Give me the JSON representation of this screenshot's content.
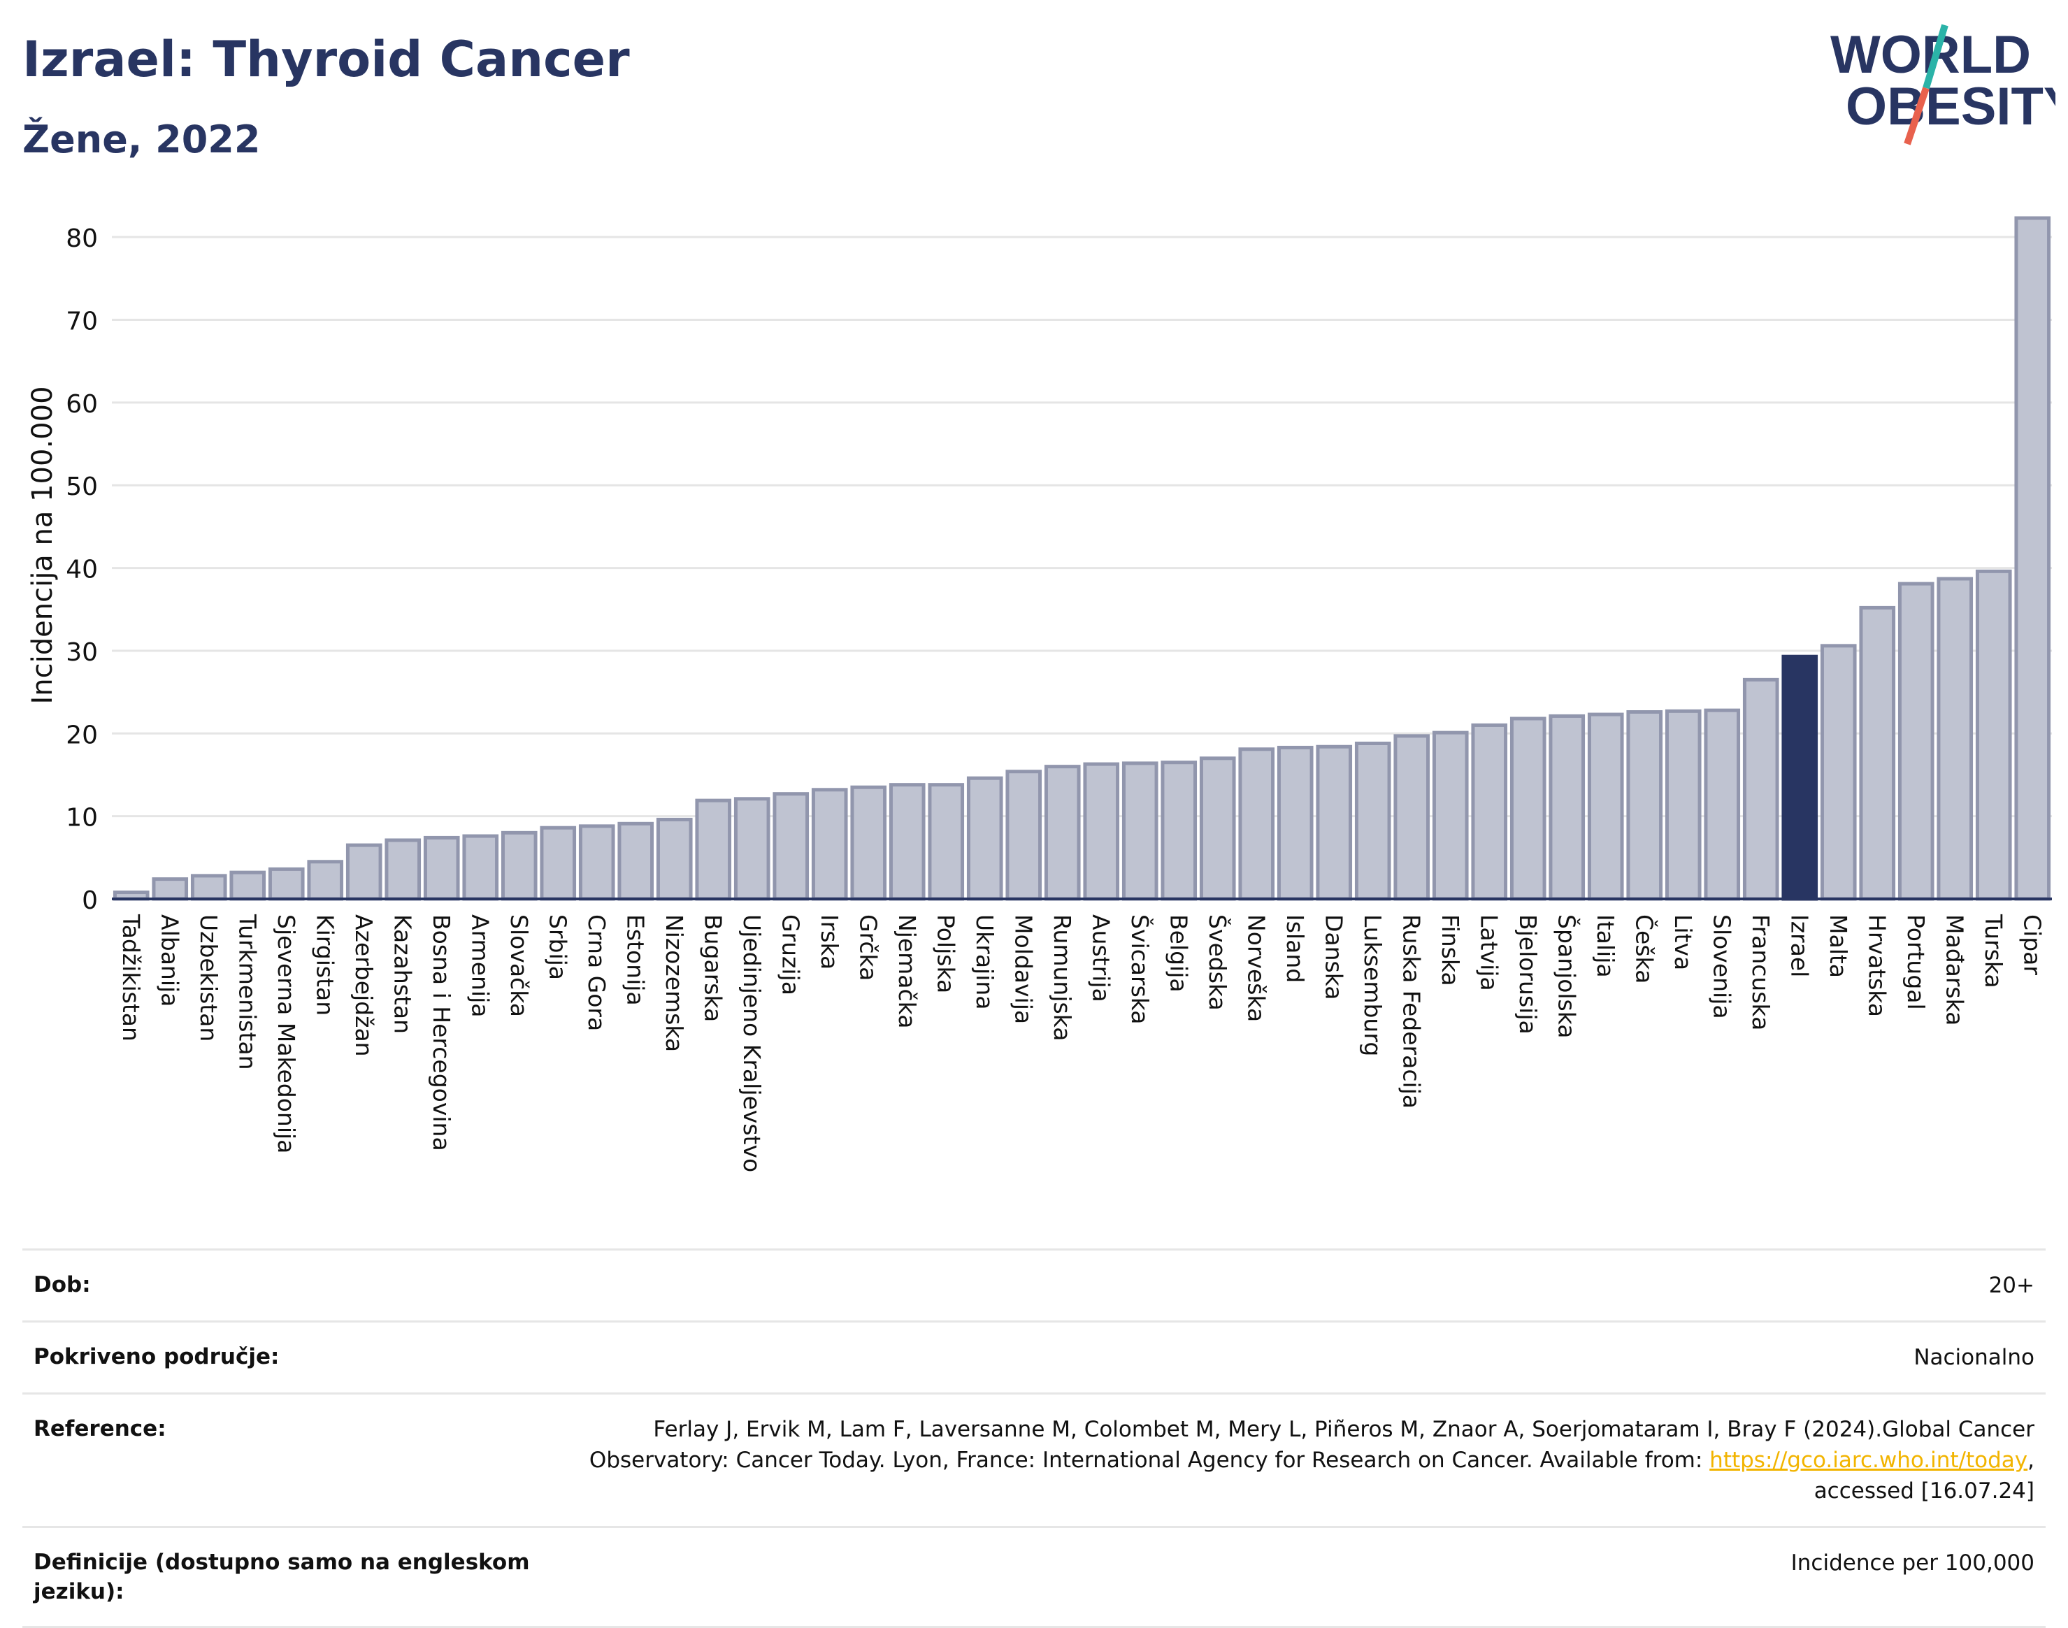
{
  "header": {
    "title": "Izrael: Thyroid Cancer",
    "subtitle": "Žene, 2022"
  },
  "logo": {
    "line1": "WORLD",
    "line2": "OBESITY",
    "accent_colors": [
      "#2bb3a8",
      "#e8614d"
    ]
  },
  "chart_data": {
    "type": "bar",
    "ylabel": "Incidencija na 100.000",
    "ylim": [
      0,
      85
    ],
    "yticks": [
      0,
      10,
      20,
      30,
      40,
      50,
      60,
      70,
      80
    ],
    "grid": true,
    "highlight": "Izrael",
    "colors": {
      "bar": "#bfc3d1",
      "bar_edge": "#9196ad",
      "highlight": "#283562"
    },
    "categories": [
      "Tadžikistan",
      "Albanija",
      "Uzbekistan",
      "Turkmenistan",
      "Sjeverna Makedonija",
      "Kirgistan",
      "Azerbejdžan",
      "Kazahstan",
      "Bosna i Hercegovina",
      "Armenija",
      "Slovačka",
      "Srbija",
      "Crna Gora",
      "Estonija",
      "Nizozemska",
      "Bugarska",
      "Ujedinjeno Kraljevstvo",
      "Gruzija",
      "Irska",
      "Grčka",
      "Njemačka",
      "Poljska",
      "Ukrajina",
      "Moldavija",
      "Rumunjska",
      "Austrija",
      "Švicarska",
      "Belgija",
      "Švedska",
      "Norveška",
      "Island",
      "Danska",
      "Luksemburg",
      "Ruska Federacija",
      "Finska",
      "Latvija",
      "Bjelorusija",
      "Španjolska",
      "Italija",
      "Češka",
      "Litva",
      "Slovenija",
      "Francuska",
      "Izrael",
      "Malta",
      "Hrvatska",
      "Portugal",
      "Mađarska",
      "Turska",
      "Cipar"
    ],
    "values": [
      0.8,
      2.4,
      2.8,
      3.2,
      3.6,
      4.5,
      6.5,
      7.1,
      7.4,
      7.6,
      8.0,
      8.6,
      8.8,
      9.1,
      9.6,
      11.9,
      12.1,
      12.7,
      13.2,
      13.5,
      13.8,
      13.8,
      14.6,
      15.4,
      16.0,
      16.3,
      16.4,
      16.5,
      17.0,
      18.1,
      18.3,
      18.4,
      18.8,
      19.7,
      20.1,
      21.0,
      21.8,
      22.1,
      22.3,
      22.6,
      22.7,
      22.8,
      26.5,
      29.3,
      30.6,
      35.2,
      38.1,
      38.7,
      39.6,
      82.3
    ]
  },
  "info": {
    "rows": [
      {
        "label": "Dob:",
        "value": "20+"
      },
      {
        "label": "Pokriveno područje:",
        "value": "Nacionalno"
      },
      {
        "label": "Reference:",
        "value_before": "Ferlay J, Ervik M, Lam F, Laversanne M, Colombet M, Mery L, Piñeros M, Znaor A, Soerjomataram I, Bray F (2024).Global Cancer Observatory: Cancer Today. Lyon, France: International Agency for Research on Cancer. Available from: ",
        "link": "https://gco.iarc.who.int/today",
        "value_after": ", accessed [16.07.24]"
      },
      {
        "label": "Definicije (dostupno samo na engleskom jeziku):",
        "value": "Incidence per 100,000"
      }
    ]
  }
}
